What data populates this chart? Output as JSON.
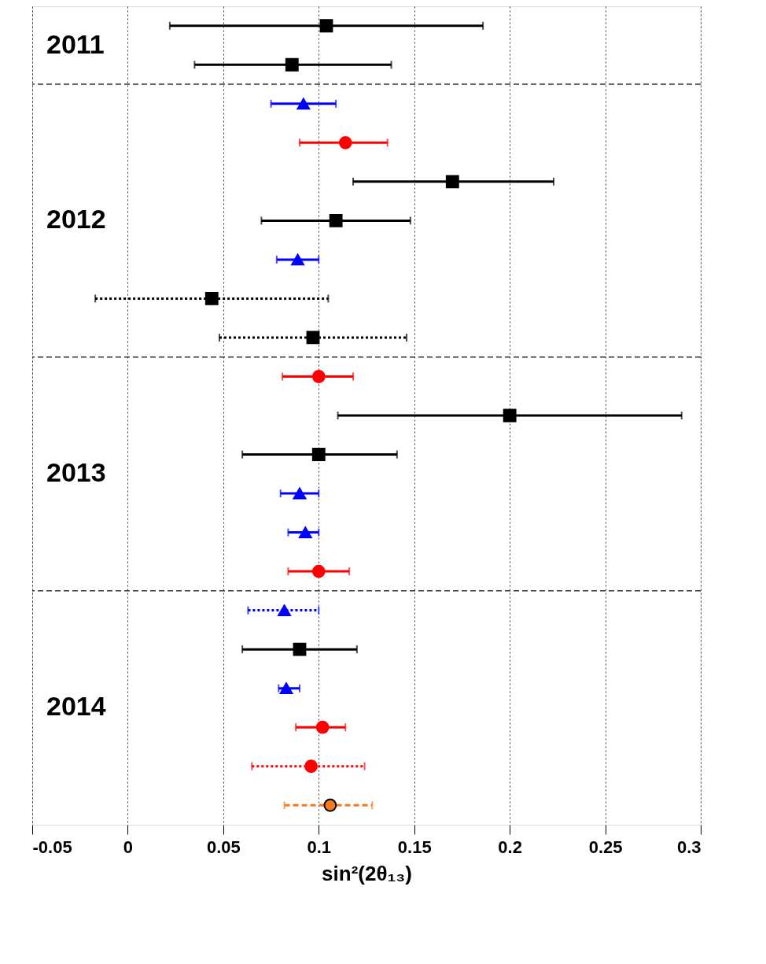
{
  "chart_data": {
    "type": "scatter",
    "orientation": "horizontal",
    "xlabel": "sin²(2θ₁₃)",
    "categories": [
      null,
      null,
      null,
      null,
      null,
      null,
      null,
      null,
      null,
      null,
      null,
      null,
      null,
      null,
      null,
      null,
      null,
      null,
      null,
      null,
      null
    ],
    "xlim": [
      -0.05,
      0.3
    ],
    "xticks": [
      -0.05,
      0,
      0.05,
      0.1,
      0.15,
      0.2,
      0.25,
      0.3
    ],
    "grid": "x",
    "series": [
      {
        "color": "#000000",
        "marker": "square",
        "line_style": "solid",
        "values": [
          0.104,
          null,
          null,
          null,
          0.17,
          null,
          null,
          null,
          null,
          null,
          0.2,
          0.1,
          null,
          null,
          null,
          null,
          0.09,
          null,
          null,
          null,
          null
        ],
        "errors": [
          [
            0.022,
            0.186
          ],
          null,
          null,
          null,
          [
            0.118,
            0.223
          ],
          null,
          null,
          null,
          null,
          null,
          [
            0.11,
            0.29
          ],
          [
            0.06,
            0.141
          ],
          null,
          null,
          null,
          null,
          [
            0.06,
            0.12
          ],
          null,
          null,
          null,
          null
        ]
      },
      {
        "color": "#000000",
        "marker": "square",
        "line_style": "solid",
        "values": [
          null,
          0.086,
          null,
          null,
          null,
          0.109,
          null,
          null,
          null,
          null,
          null,
          null,
          null,
          null,
          null,
          null,
          null,
          null,
          null,
          null,
          null
        ],
        "errors": [
          null,
          [
            0.035,
            0.138
          ],
          null,
          null,
          null,
          [
            0.07,
            0.148
          ],
          null,
          null,
          null,
          null,
          null,
          null,
          null,
          null,
          null,
          null,
          null,
          null,
          null,
          null,
          null
        ]
      },
      {
        "color": "#0000ff",
        "marker": "triangle",
        "line_style": "solid",
        "values": [
          null,
          null,
          0.092,
          null,
          null,
          null,
          0.089,
          null,
          null,
          null,
          null,
          null,
          0.09,
          null,
          null,
          null,
          null,
          null,
          null,
          null,
          null
        ],
        "errors": [
          null,
          null,
          [
            0.075,
            0.109
          ],
          null,
          null,
          null,
          [
            0.078,
            0.1
          ],
          null,
          null,
          null,
          null,
          null,
          [
            0.08,
            0.1
          ],
          null,
          null,
          null,
          null,
          null,
          null,
          null,
          null
        ]
      },
      {
        "color": "#ff0000",
        "marker": "circle",
        "line_style": "solid",
        "values": [
          null,
          null,
          null,
          0.114,
          null,
          null,
          null,
          null,
          null,
          0.1,
          null,
          null,
          null,
          null,
          0.1,
          null,
          null,
          null,
          0.102,
          null,
          null
        ],
        "errors": [
          null,
          null,
          null,
          [
            0.09,
            0.136
          ],
          null,
          null,
          null,
          null,
          null,
          [
            0.081,
            0.118
          ],
          null,
          null,
          null,
          null,
          [
            0.084,
            0.116
          ],
          null,
          null,
          null,
          [
            0.088,
            0.114
          ],
          null,
          null
        ]
      },
      {
        "color": "#000000",
        "marker": "square",
        "line_style": "dotted",
        "values": [
          null,
          null,
          null,
          null,
          null,
          null,
          null,
          0.044,
          null,
          null,
          null,
          null,
          null,
          null,
          null,
          null,
          null,
          null,
          null,
          null,
          null
        ],
        "errors": [
          null,
          null,
          null,
          null,
          null,
          null,
          null,
          [
            -0.017,
            0.105
          ],
          null,
          null,
          null,
          null,
          null,
          null,
          null,
          null,
          null,
          null,
          null,
          null,
          null
        ]
      },
      {
        "color": "#000000",
        "marker": "square",
        "line_style": "dotted",
        "values": [
          null,
          null,
          null,
          null,
          null,
          null,
          null,
          null,
          0.097,
          null,
          null,
          null,
          null,
          null,
          null,
          null,
          null,
          null,
          null,
          null,
          null
        ],
        "errors": [
          null,
          null,
          null,
          null,
          null,
          null,
          null,
          null,
          [
            0.048,
            0.146
          ],
          null,
          null,
          null,
          null,
          null,
          null,
          null,
          null,
          null,
          null,
          null,
          null
        ]
      },
      {
        "color": "#0000ff",
        "marker": "triangle",
        "line_style": "solid",
        "values": [
          null,
          null,
          null,
          null,
          null,
          null,
          null,
          null,
          null,
          null,
          null,
          null,
          null,
          0.093,
          null,
          null,
          null,
          0.083,
          null,
          null,
          null
        ],
        "errors": [
          null,
          null,
          null,
          null,
          null,
          null,
          null,
          null,
          null,
          null,
          null,
          null,
          null,
          [
            0.084,
            0.1
          ],
          null,
          null,
          null,
          [
            0.079,
            0.09
          ],
          null,
          null,
          null
        ]
      },
      {
        "color": "#0000ff",
        "marker": "triangle",
        "line_style": "dotted",
        "values": [
          null,
          null,
          null,
          null,
          null,
          null,
          null,
          null,
          null,
          null,
          null,
          null,
          null,
          null,
          null,
          0.082,
          null,
          null,
          null,
          null,
          null
        ],
        "errors": [
          null,
          null,
          null,
          null,
          null,
          null,
          null,
          null,
          null,
          null,
          null,
          null,
          null,
          null,
          null,
          [
            0.063,
            0.1
          ],
          null,
          null,
          null,
          null,
          null
        ]
      },
      {
        "color": "#ff0000",
        "marker": "circle",
        "line_style": "dotted",
        "values": [
          null,
          null,
          null,
          null,
          null,
          null,
          null,
          null,
          null,
          null,
          null,
          null,
          null,
          null,
          null,
          null,
          null,
          null,
          null,
          0.096,
          null
        ],
        "errors": [
          null,
          null,
          null,
          null,
          null,
          null,
          null,
          null,
          null,
          null,
          null,
          null,
          null,
          null,
          null,
          null,
          null,
          null,
          null,
          [
            0.065,
            0.124
          ],
          null
        ]
      },
      {
        "color": "#f77a1c",
        "marker": "circle",
        "line_style": "dashed",
        "values": [
          null,
          null,
          null,
          null,
          null,
          null,
          null,
          null,
          null,
          null,
          null,
          null,
          null,
          null,
          null,
          null,
          null,
          null,
          null,
          null,
          0.106
        ],
        "errors": [
          null,
          null,
          null,
          null,
          null,
          null,
          null,
          null,
          null,
          null,
          null,
          null,
          null,
          null,
          null,
          null,
          null,
          null,
          null,
          null,
          [
            0.082,
            0.128
          ]
        ]
      }
    ],
    "annotations": [
      "2011",
      "2012",
      "2013",
      "2014"
    ]
  }
}
